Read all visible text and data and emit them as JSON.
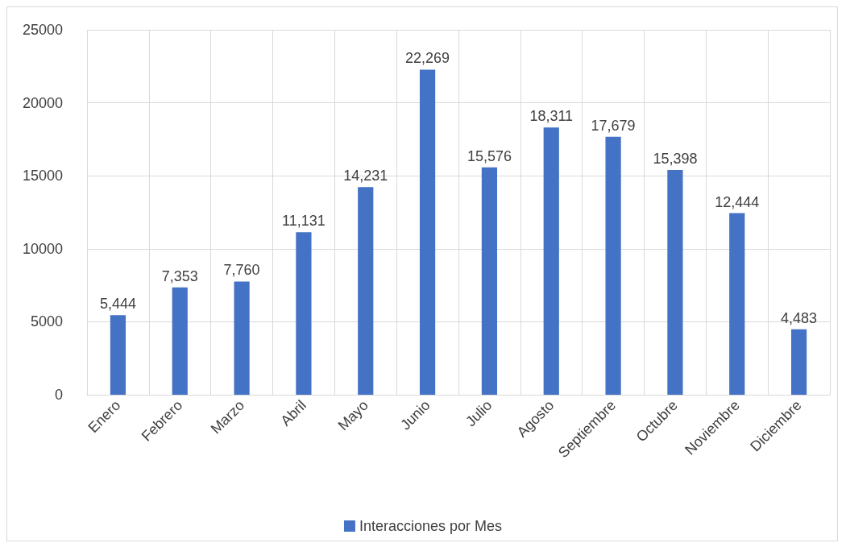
{
  "chart_data": {
    "type": "bar",
    "categories": [
      "Enero",
      "Febrero",
      "Marzo",
      "Abril",
      "Mayo",
      "Junio",
      "Julio",
      "Agosto",
      "Septiembre",
      "Octubre",
      "Noviembre",
      "Diciembre"
    ],
    "series": [
      {
        "name": "Interacciones por Mes",
        "color": "#4472c4",
        "values": [
          5444,
          7353,
          7760,
          11131,
          14231,
          22269,
          15576,
          18311,
          17679,
          15398,
          12444,
          4483
        ],
        "value_labels": [
          "5,444",
          "7,353",
          "7,760",
          "11,131",
          "14,231",
          "22,269",
          "15,576",
          "18,311",
          "17,679",
          "15,398",
          "12,444",
          "4,483"
        ]
      }
    ],
    "ylim": [
      0,
      25000
    ],
    "yticks": [
      0,
      5000,
      10000,
      15000,
      20000,
      25000
    ],
    "grid": true,
    "legend": "bottom"
  }
}
